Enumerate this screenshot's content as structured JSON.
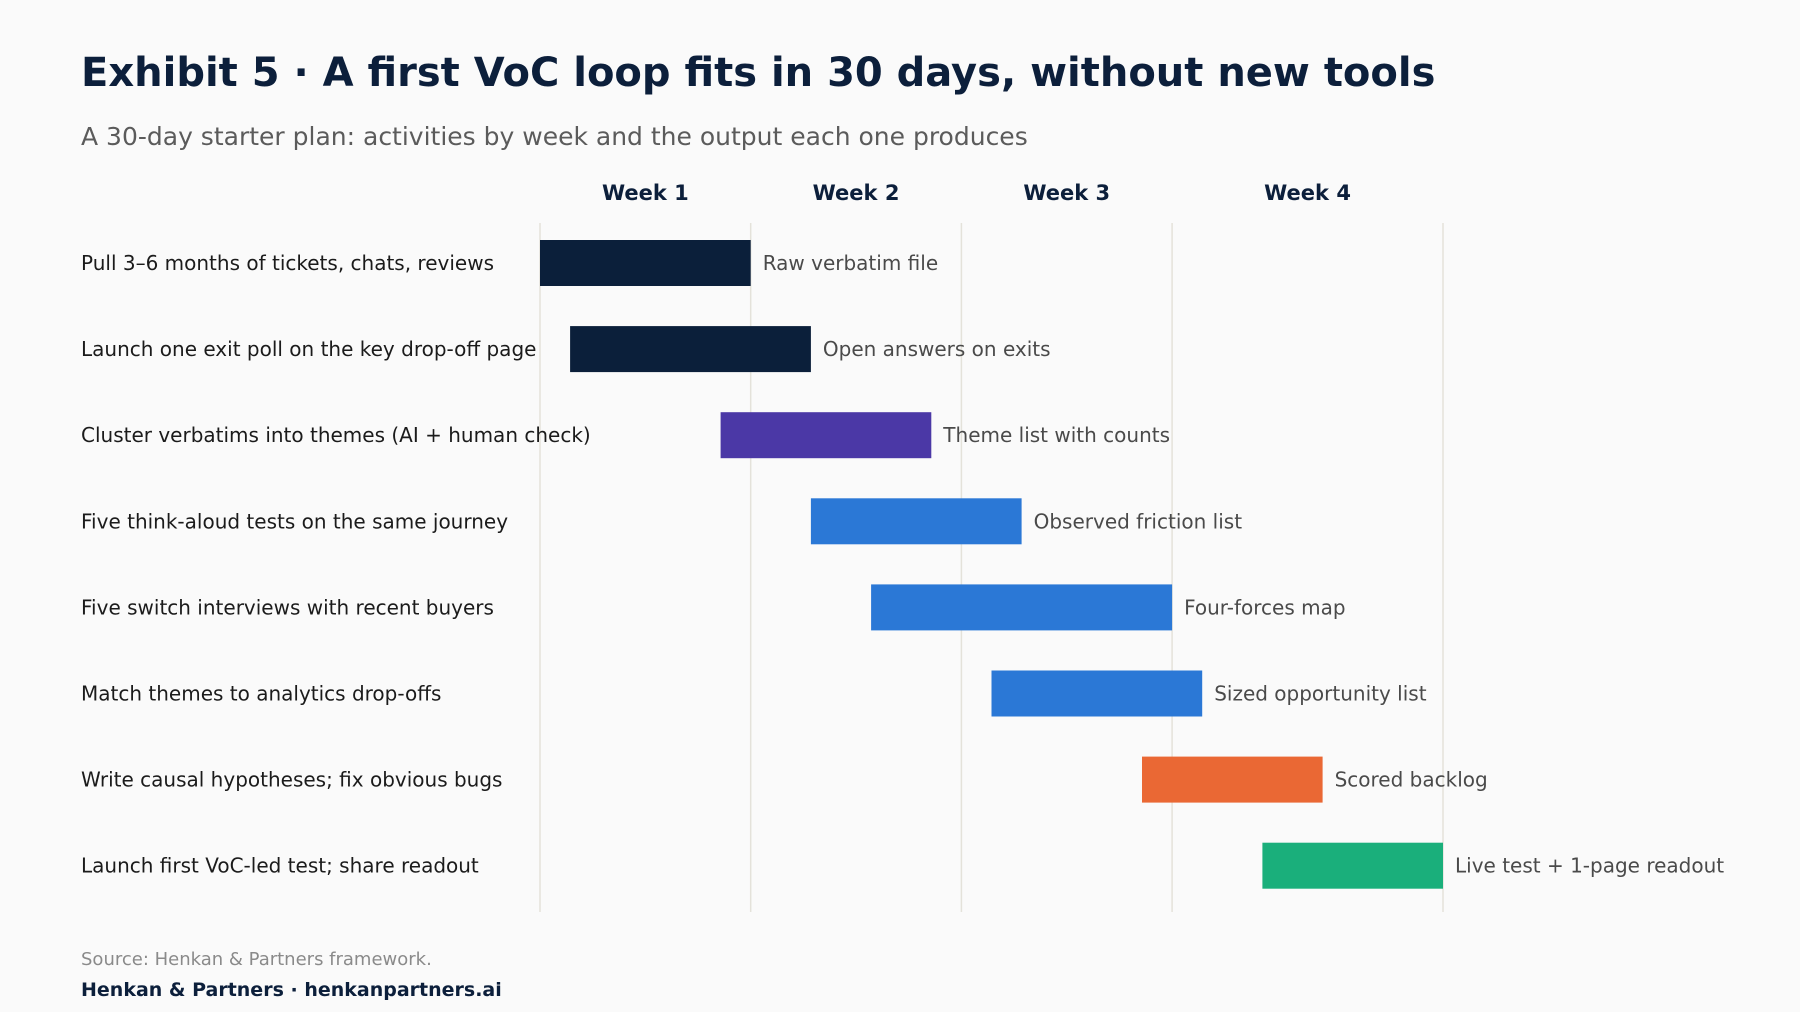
{
  "title": "Exhibit 5 · A first VoC loop fits in 30 days, without new tools",
  "subtitle": "A 30-day starter plan: activities by week and the output each one produces",
  "source": "Source: Henkan & Partners framework.",
  "brand": "Henkan & Partners · henkanpartners.ai",
  "colors": {
    "navy": "#0b1f3a",
    "purple": "#4b38a6",
    "blue": "#2b78d6",
    "orange": "#ea6834",
    "green": "#1aaf7b",
    "grid": "#e4e2da"
  },
  "chart_data": {
    "type": "gantt",
    "x_unit": "day",
    "xlim": [
      0,
      30
    ],
    "week_boundaries": [
      7,
      14,
      21,
      30
    ],
    "weeks": [
      {
        "label": "Week 1",
        "center": 3.5
      },
      {
        "label": "Week 2",
        "center": 10.5
      },
      {
        "label": "Week 3",
        "center": 17.5
      },
      {
        "label": "Week 4",
        "center": 25.5
      }
    ],
    "tasks": [
      {
        "label": "Pull 3–6 months of tickets, chats, reviews",
        "start": 0,
        "end": 7,
        "output": "Raw verbatim file",
        "color": "navy"
      },
      {
        "label": "Launch one exit poll on the key drop-off page",
        "start": 1,
        "end": 9,
        "output": "Open answers on exits",
        "color": "navy"
      },
      {
        "label": "Cluster verbatims into themes (AI + human check)",
        "start": 6,
        "end": 13,
        "output": "Theme list with counts",
        "color": "purple"
      },
      {
        "label": "Five think-aloud tests on the same journey",
        "start": 9,
        "end": 16,
        "output": "Observed friction list",
        "color": "blue"
      },
      {
        "label": "Five switch interviews with recent buyers",
        "start": 11,
        "end": 21,
        "output": "Four-forces map",
        "color": "blue"
      },
      {
        "label": "Match themes to analytics drop-offs",
        "start": 15,
        "end": 22,
        "output": "Sized opportunity list",
        "color": "blue"
      },
      {
        "label": "Write causal hypotheses; fix obvious bugs",
        "start": 20,
        "end": 26,
        "output": "Scored backlog",
        "color": "orange"
      },
      {
        "label": "Launch first VoC-led test; share readout",
        "start": 24,
        "end": 30,
        "output": "Live test + 1-page readout",
        "color": "green"
      }
    ]
  }
}
